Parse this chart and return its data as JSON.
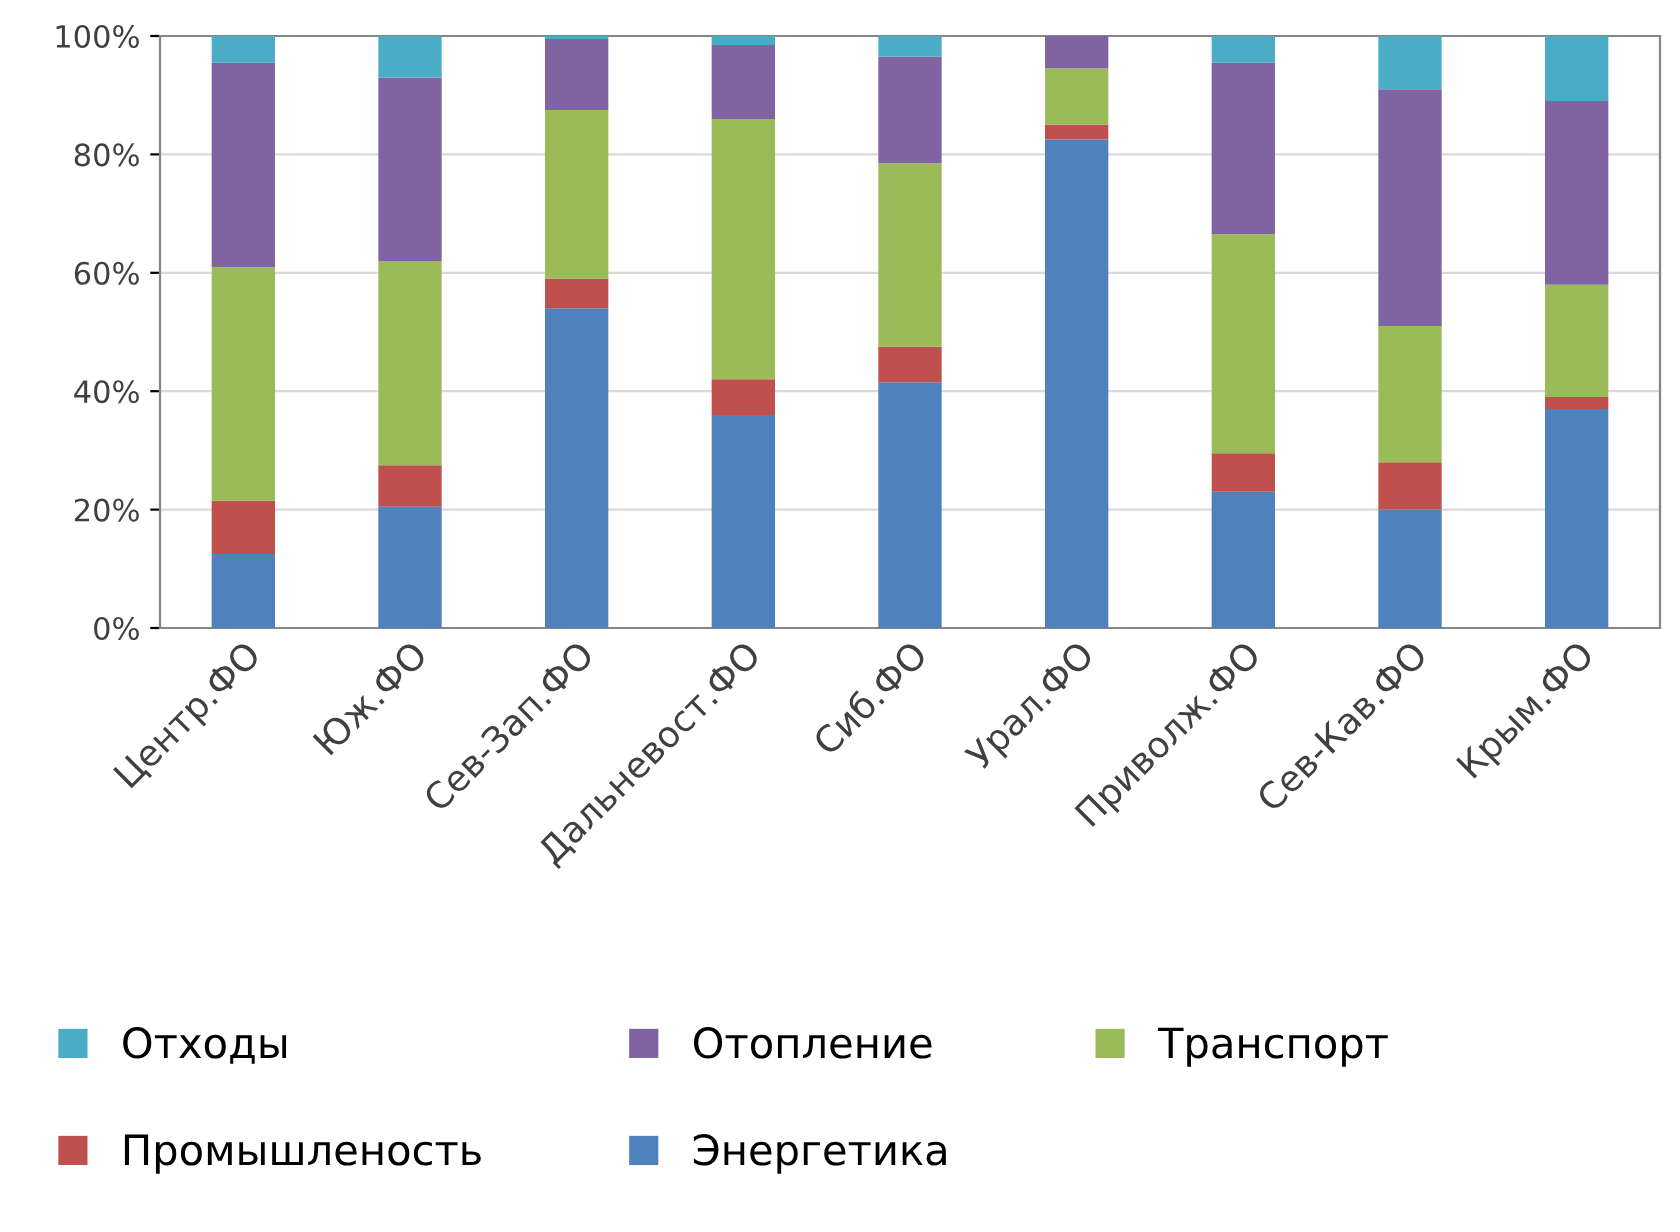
{
  "chart_data": {
    "type": "bar",
    "stacked": true,
    "categories": [
      "Центр.ФО",
      "Юж.ФО",
      "Сев-Зап.ФО",
      "Дальневост.ФО",
      "Сиб.ФО",
      "Урал.ФО",
      "Приволж.ФО",
      "Сев-Кав.ФО",
      "Крым.ФО"
    ],
    "series": [
      {
        "name": "Энергетика",
        "color": "#4f81bd",
        "values": [
          12.5,
          20.5,
          54,
          36,
          41.5,
          82.5,
          23,
          20,
          37
        ]
      },
      {
        "name": "Промышленость",
        "color": "#c0504d",
        "values": [
          9,
          7,
          5,
          6,
          6,
          2.5,
          6.5,
          8,
          2
        ]
      },
      {
        "name": "Транспорт",
        "color": "#9bbb59",
        "values": [
          39.5,
          34.5,
          28.5,
          44,
          31,
          9.5,
          37,
          23,
          19
        ]
      },
      {
        "name": "Отопление",
        "color": "#8064a2",
        "values": [
          34.5,
          31,
          12,
          12.5,
          18,
          5.5,
          29,
          40,
          31
        ]
      },
      {
        "name": "Отходы",
        "color": "#4bacc6",
        "values": [
          4.5,
          7,
          0.5,
          1.5,
          3.5,
          0,
          4.5,
          9,
          11
        ]
      }
    ],
    "ylim": [
      0,
      100
    ],
    "yticks": [
      {
        "value": 0,
        "label": "0%"
      },
      {
        "value": 20,
        "label": "20%"
      },
      {
        "value": 40,
        "label": "40%"
      },
      {
        "value": 60,
        "label": "60%"
      },
      {
        "value": 80,
        "label": "80%"
      },
      {
        "value": 100,
        "label": "100%"
      }
    ],
    "grid": "y",
    "legend": "bottom"
  }
}
